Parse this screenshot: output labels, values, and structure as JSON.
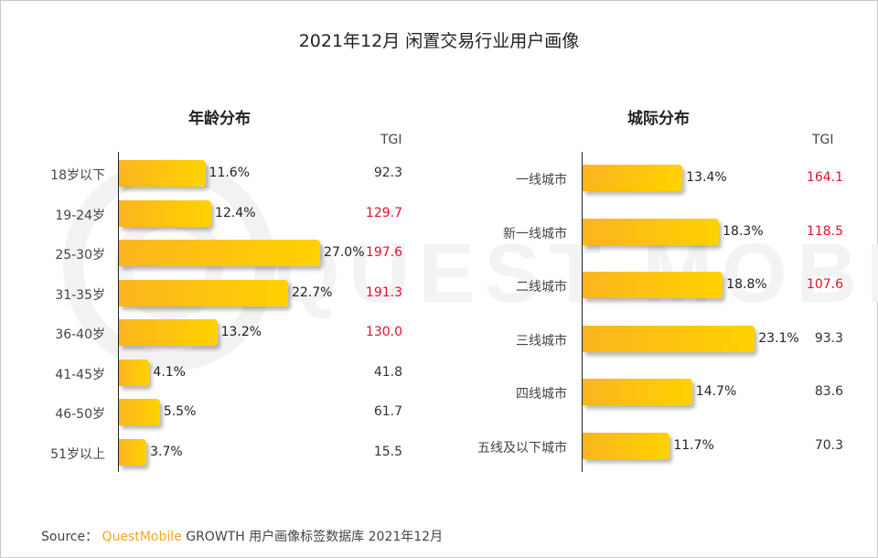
{
  "title": "2021年12月 闲置交易行业用户画像",
  "source": {
    "prefix": "Source：",
    "brand": "QuestMobile",
    "text": "GROWTH 用户画像标签数据库 2021年12月"
  },
  "watermark": "QUEST MOBILE",
  "colors": {
    "bar_start": "#fbb51f",
    "bar_end": "#ffd200",
    "tgi_high": "#e0102a",
    "tgi_normal": "#333333",
    "brand": "#f5a623"
  },
  "chart_data": [
    {
      "type": "bar",
      "orientation": "horizontal",
      "title": "年龄分布",
      "tgi_label": "TGI",
      "categories": [
        "18岁以下",
        "19-24岁",
        "25-30岁",
        "31-35岁",
        "36-40岁",
        "41-45岁",
        "46-50岁",
        "51岁以上"
      ],
      "values": [
        11.6,
        12.4,
        27.0,
        22.7,
        13.2,
        4.1,
        5.5,
        3.7
      ],
      "value_labels": [
        "11.6%",
        "12.4%",
        "27.0%",
        "22.7%",
        "13.2%",
        "4.1%",
        "5.5%",
        "3.7%"
      ],
      "tgi": [
        "92.3",
        "129.7",
        "197.6",
        "191.3",
        "130.0",
        "41.8",
        "61.7",
        "15.5"
      ],
      "tgi_highlight": [
        false,
        true,
        true,
        true,
        true,
        false,
        false,
        false
      ],
      "unit": "%"
    },
    {
      "type": "bar",
      "orientation": "horizontal",
      "title": "城际分布",
      "tgi_label": "TGI",
      "categories": [
        "一线城市",
        "新一线城市",
        "二线城市",
        "三线城市",
        "四线城市",
        "五线及以下城市"
      ],
      "values": [
        13.4,
        18.3,
        18.8,
        23.1,
        14.7,
        11.7
      ],
      "value_labels": [
        "13.4%",
        "18.3%",
        "18.8%",
        "23.1%",
        "14.7%",
        "11.7%"
      ],
      "tgi": [
        "164.1",
        "118.5",
        "107.6",
        "93.3",
        "83.6",
        "70.3"
      ],
      "tgi_highlight": [
        true,
        true,
        true,
        false,
        false,
        false
      ],
      "unit": "%"
    }
  ]
}
